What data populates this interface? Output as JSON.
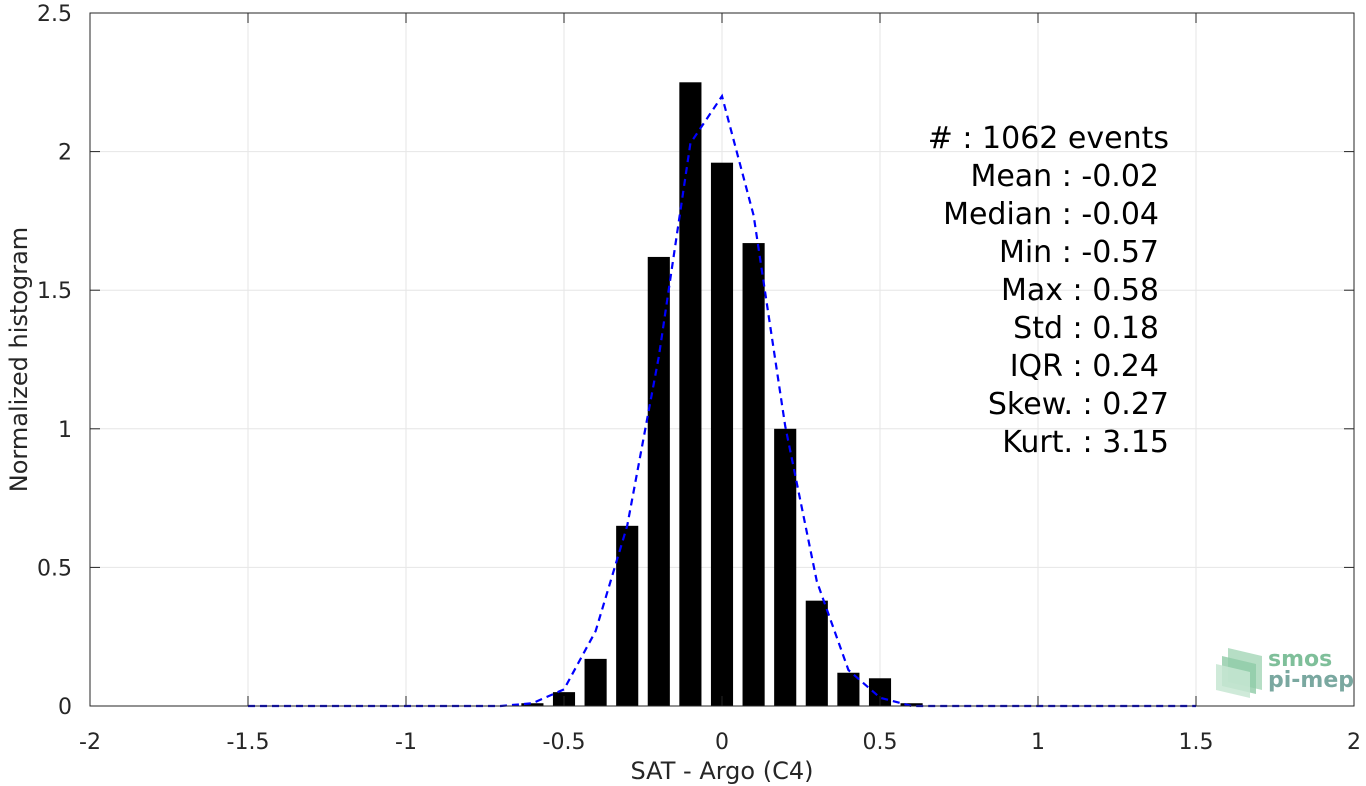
{
  "chart_data": {
    "type": "bar",
    "xlabel": "SAT - Argo (C4)",
    "ylabel": "Normalized histogram",
    "xlim": [
      -2,
      2
    ],
    "ylim": [
      0,
      2.5
    ],
    "grid": true,
    "x_ticks": [
      -2,
      -1.5,
      -1,
      -0.5,
      0,
      0.5,
      1,
      1.5,
      2
    ],
    "x_tick_labels": [
      "-2",
      "-1.5",
      "-1",
      "-0.5",
      "0",
      "0.5",
      "1",
      "1.5",
      "2"
    ],
    "y_ticks": [
      0,
      0.5,
      1,
      1.5,
      2,
      2.5
    ],
    "y_tick_labels": [
      "0",
      "0.5",
      "1",
      "1.5",
      "2",
      "2.5"
    ],
    "bar_width": 0.07,
    "bins": [
      {
        "x": -0.6,
        "y": 0.01
      },
      {
        "x": -0.5,
        "y": 0.05
      },
      {
        "x": -0.4,
        "y": 0.17
      },
      {
        "x": -0.3,
        "y": 0.65
      },
      {
        "x": -0.2,
        "y": 1.62
      },
      {
        "x": -0.1,
        "y": 2.25
      },
      {
        "x": 0.0,
        "y": 1.96
      },
      {
        "x": 0.1,
        "y": 1.67
      },
      {
        "x": 0.2,
        "y": 1.0
      },
      {
        "x": 0.3,
        "y": 0.38
      },
      {
        "x": 0.4,
        "y": 0.12
      },
      {
        "x": 0.5,
        "y": 0.1
      },
      {
        "x": 0.6,
        "y": 0.01
      }
    ],
    "bar_color": "#000000",
    "fit_series": {
      "style": "dashed",
      "color": "#0000ff",
      "x": [
        -1.5,
        -1.4,
        -1.3,
        -1.2,
        -1.1,
        -1.0,
        -0.9,
        -0.8,
        -0.7,
        -0.6,
        -0.5,
        -0.4,
        -0.3,
        -0.2,
        -0.1,
        0.0,
        0.1,
        0.2,
        0.3,
        0.4,
        0.5,
        0.6,
        0.7,
        0.8,
        0.9,
        1.0,
        1.1,
        1.2,
        1.3,
        1.4,
        1.5
      ],
      "y": [
        0,
        0,
        0,
        0,
        0,
        0,
        0,
        0,
        0,
        0.01,
        0.06,
        0.27,
        0.65,
        1.26,
        2.03,
        2.2,
        1.77,
        1.01,
        0.45,
        0.13,
        0.03,
        0,
        0,
        0,
        0,
        0,
        0,
        0,
        0,
        0,
        0
      ]
    }
  },
  "stats_box": {
    "lines": [
      "#  : 1062 events",
      "Mean : -0.02",
      "Median : -0.04",
      "Min : -0.57",
      "Max : 0.58",
      "Std : 0.18",
      "IQR : 0.24",
      "Skew. : 0.27",
      "Kurt. : 3.15"
    ]
  },
  "logo": {
    "line1": "smos",
    "line2": "pi-mep",
    "color": "#7fbf9a"
  }
}
